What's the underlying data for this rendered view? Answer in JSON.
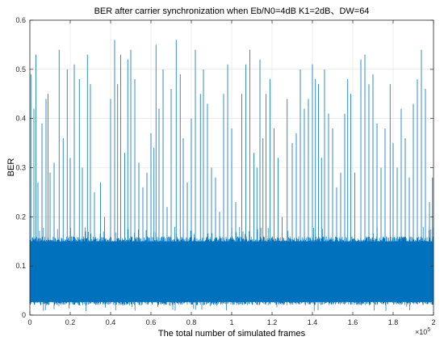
{
  "chart_data": {
    "type": "line",
    "title": "BER after carrier synchronization when Eb/N0=4dB  K1=2dB、DW=64",
    "xlabel": "The total number of simulated frames",
    "ylabel": "BER",
    "x_exponent_label": "×10",
    "x_exponent_power": "5",
    "xlim": [
      0,
      2
    ],
    "ylim": [
      0,
      0.6
    ],
    "x_ticks": [
      0,
      0.2,
      0.4,
      0.6,
      0.8,
      1,
      1.2,
      1.4,
      1.6,
      1.8,
      2
    ],
    "x_tick_labels": [
      "0",
      "0.2",
      "0.4",
      "0.6",
      "0.8",
      "1",
      "1.2",
      "1.4",
      "1.6",
      "1.8",
      "2"
    ],
    "y_ticks": [
      0,
      0.1,
      0.2,
      0.3,
      0.4,
      0.5,
      0.6
    ],
    "y_tick_labels": [
      "0",
      "0.1",
      "0.2",
      "0.3",
      "0.4",
      "0.5",
      "0.6"
    ],
    "grid": true,
    "series_color": "#0072BD",
    "band": {
      "low": 0.02,
      "high": 0.16,
      "center": 0.095
    },
    "spikes": [
      {
        "x": 0.005,
        "y": 0.49
      },
      {
        "x": 0.02,
        "y": 0.42
      },
      {
        "x": 0.03,
        "y": 0.53
      },
      {
        "x": 0.04,
        "y": 0.27
      },
      {
        "x": 0.06,
        "y": 0.39
      },
      {
        "x": 0.08,
        "y": 0.44
      },
      {
        "x": 0.09,
        "y": 0.45
      },
      {
        "x": 0.1,
        "y": 0.29
      },
      {
        "x": 0.12,
        "y": 0.31
      },
      {
        "x": 0.145,
        "y": 0.54
      },
      {
        "x": 0.165,
        "y": 0.36
      },
      {
        "x": 0.185,
        "y": 0.5
      },
      {
        "x": 0.2,
        "y": 0.32
      },
      {
        "x": 0.22,
        "y": 0.51
      },
      {
        "x": 0.245,
        "y": 0.48
      },
      {
        "x": 0.26,
        "y": 0.3
      },
      {
        "x": 0.285,
        "y": 0.53
      },
      {
        "x": 0.3,
        "y": 0.47
      },
      {
        "x": 0.32,
        "y": 0.25
      },
      {
        "x": 0.35,
        "y": 0.27
      },
      {
        "x": 0.37,
        "y": 0.2
      },
      {
        "x": 0.4,
        "y": 0.44
      },
      {
        "x": 0.42,
        "y": 0.56
      },
      {
        "x": 0.435,
        "y": 0.47
      },
      {
        "x": 0.45,
        "y": 0.53
      },
      {
        "x": 0.47,
        "y": 0.33
      },
      {
        "x": 0.485,
        "y": 0.52
      },
      {
        "x": 0.5,
        "y": 0.54
      },
      {
        "x": 0.52,
        "y": 0.48
      },
      {
        "x": 0.54,
        "y": 0.31
      },
      {
        "x": 0.56,
        "y": 0.26
      },
      {
        "x": 0.58,
        "y": 0.29
      },
      {
        "x": 0.6,
        "y": 0.37
      },
      {
        "x": 0.615,
        "y": 0.34
      },
      {
        "x": 0.625,
        "y": 0.55
      },
      {
        "x": 0.64,
        "y": 0.42
      },
      {
        "x": 0.66,
        "y": 0.5
      },
      {
        "x": 0.68,
        "y": 0.22
      },
      {
        "x": 0.7,
        "y": 0.46
      },
      {
        "x": 0.725,
        "y": 0.56
      },
      {
        "x": 0.745,
        "y": 0.49
      },
      {
        "x": 0.76,
        "y": 0.36
      },
      {
        "x": 0.78,
        "y": 0.27
      },
      {
        "x": 0.8,
        "y": 0.4
      },
      {
        "x": 0.82,
        "y": 0.54
      },
      {
        "x": 0.845,
        "y": 0.45
      },
      {
        "x": 0.86,
        "y": 0.5
      },
      {
        "x": 0.88,
        "y": 0.43
      },
      {
        "x": 0.9,
        "y": 0.3
      },
      {
        "x": 0.92,
        "y": 0.28
      },
      {
        "x": 0.94,
        "y": 0.21
      },
      {
        "x": 0.96,
        "y": 0.45
      },
      {
        "x": 0.98,
        "y": 0.51
      },
      {
        "x": 1.0,
        "y": 0.38
      },
      {
        "x": 1.02,
        "y": 0.23
      },
      {
        "x": 1.05,
        "y": 0.45
      },
      {
        "x": 1.07,
        "y": 0.51
      },
      {
        "x": 1.09,
        "y": 0.54
      },
      {
        "x": 1.11,
        "y": 0.33
      },
      {
        "x": 1.125,
        "y": 0.3
      },
      {
        "x": 1.14,
        "y": 0.52
      },
      {
        "x": 1.155,
        "y": 0.36
      },
      {
        "x": 1.17,
        "y": 0.45
      },
      {
        "x": 1.19,
        "y": 0.48
      },
      {
        "x": 1.21,
        "y": 0.38
      },
      {
        "x": 1.23,
        "y": 0.32
      },
      {
        "x": 1.25,
        "y": 0.2
      },
      {
        "x": 1.275,
        "y": 0.44
      },
      {
        "x": 1.3,
        "y": 0.35
      },
      {
        "x": 1.32,
        "y": 0.37
      },
      {
        "x": 1.34,
        "y": 0.5
      },
      {
        "x": 1.36,
        "y": 0.42
      },
      {
        "x": 1.38,
        "y": 0.44
      },
      {
        "x": 1.4,
        "y": 0.51
      },
      {
        "x": 1.415,
        "y": 0.48
      },
      {
        "x": 1.43,
        "y": 0.47
      },
      {
        "x": 1.445,
        "y": 0.32
      },
      {
        "x": 1.46,
        "y": 0.5
      },
      {
        "x": 1.48,
        "y": 0.41
      },
      {
        "x": 1.5,
        "y": 0.38
      },
      {
        "x": 1.52,
        "y": 0.26
      },
      {
        "x": 1.54,
        "y": 0.29
      },
      {
        "x": 1.56,
        "y": 0.41
      },
      {
        "x": 1.575,
        "y": 0.48
      },
      {
        "x": 1.59,
        "y": 0.45
      },
      {
        "x": 1.61,
        "y": 0.29
      },
      {
        "x": 1.64,
        "y": 0.52
      },
      {
        "x": 1.66,
        "y": 0.53
      },
      {
        "x": 1.68,
        "y": 0.47
      },
      {
        "x": 1.7,
        "y": 0.49
      },
      {
        "x": 1.72,
        "y": 0.39
      },
      {
        "x": 1.74,
        "y": 0.3
      },
      {
        "x": 1.76,
        "y": 0.38
      },
      {
        "x": 1.785,
        "y": 0.47
      },
      {
        "x": 1.8,
        "y": 0.35
      },
      {
        "x": 1.82,
        "y": 0.3
      },
      {
        "x": 1.84,
        "y": 0.42
      },
      {
        "x": 1.86,
        "y": 0.36
      },
      {
        "x": 1.88,
        "y": 0.28
      },
      {
        "x": 1.9,
        "y": 0.43
      },
      {
        "x": 1.92,
        "y": 0.48
      },
      {
        "x": 1.94,
        "y": 0.54
      },
      {
        "x": 1.96,
        "y": 0.46
      },
      {
        "x": 1.98,
        "y": 0.23
      },
      {
        "x": 1.995,
        "y": 0.28
      }
    ]
  }
}
